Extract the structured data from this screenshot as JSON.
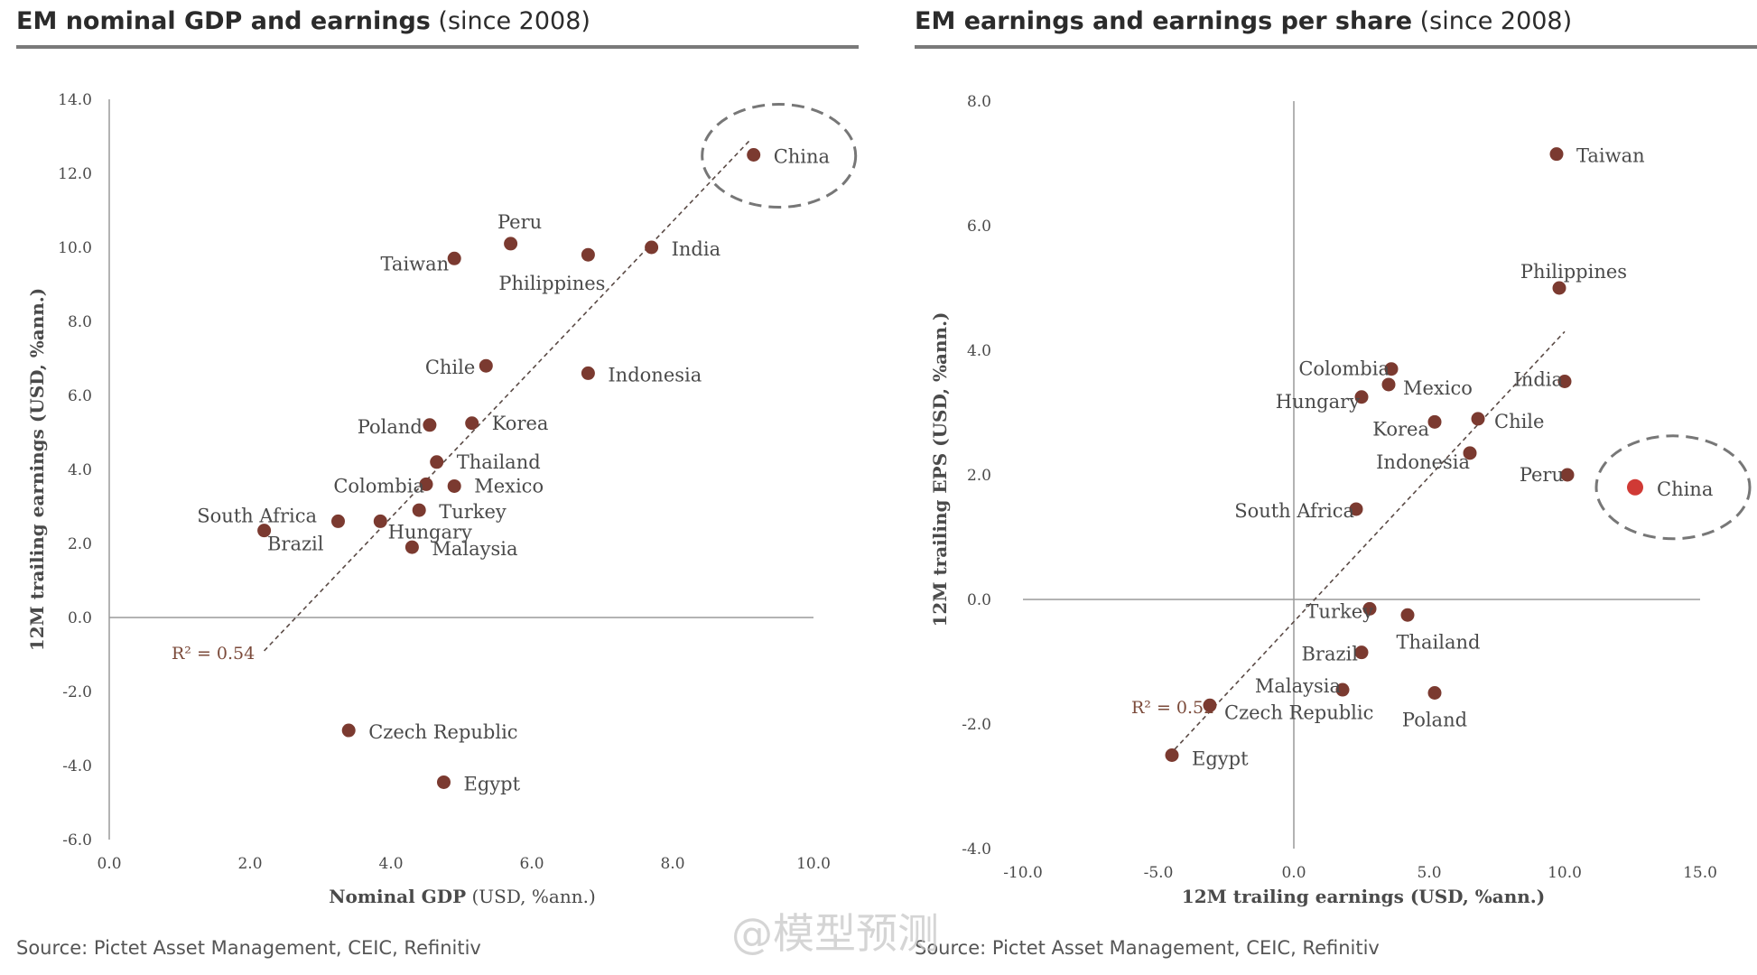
{
  "left_panel": {
    "title_bold": "EM nominal GDP and earnings",
    "title_rest": " (since 2008)",
    "source": "Source: Pictet Asset Management, CEIC, Refinitiv"
  },
  "right_panel": {
    "title_bold": "EM earnings and earnings per share",
    "title_rest": " (since 2008)",
    "source": "Source: Pictet Asset Management, CEIC, Refinitiv"
  },
  "watermark": "@模型预测",
  "colors": {
    "point": "#7b3a30",
    "highlight": "#d03a35",
    "axis": "#9a9a9a",
    "trend": "#5a4a45",
    "label": "#4a4a4a",
    "r2": "#7b4a3a",
    "circle": "#777777"
  },
  "chart_data": [
    {
      "type": "scatter",
      "xlabel_bold": "Nominal GDP",
      "xlabel_rest": " (USD, %ann.)",
      "ylabel": "12M trailing earnings (USD, %ann.)",
      "xlim": [
        0,
        10
      ],
      "ylim": [
        -6,
        14
      ],
      "x_ticks": [
        "0.0",
        "2.0",
        "4.0",
        "6.0",
        "8.0",
        "10.0"
      ],
      "y_ticks": [
        "14.0",
        "12.0",
        "10.0",
        "8.0",
        "6.0",
        "4.0",
        "2.0",
        "0.0",
        "-2.0",
        "-4.0",
        "-6.0"
      ],
      "r2_label": "R² = 0.54",
      "trendline": {
        "x": [
          2.2,
          9.1
        ],
        "y": [
          -0.9,
          12.9
        ]
      },
      "highlight": "China",
      "points": [
        {
          "name": "China",
          "x": 9.15,
          "y": 12.5
        },
        {
          "name": "India",
          "x": 7.7,
          "y": 10.0
        },
        {
          "name": "Peru",
          "x": 5.7,
          "y": 10.1
        },
        {
          "name": "Philippines",
          "x": 6.8,
          "y": 9.8
        },
        {
          "name": "Taiwan",
          "x": 4.9,
          "y": 9.7
        },
        {
          "name": "Chile",
          "x": 5.35,
          "y": 6.8
        },
        {
          "name": "Indonesia",
          "x": 6.8,
          "y": 6.6
        },
        {
          "name": "Poland",
          "x": 4.55,
          "y": 5.2
        },
        {
          "name": "Korea",
          "x": 5.15,
          "y": 5.25
        },
        {
          "name": "Thailand",
          "x": 4.65,
          "y": 4.2
        },
        {
          "name": "Colombia",
          "x": 4.5,
          "y": 3.6
        },
        {
          "name": "Mexico",
          "x": 4.9,
          "y": 3.55
        },
        {
          "name": "Turkey",
          "x": 4.4,
          "y": 2.9
        },
        {
          "name": "South Africa",
          "x": 2.2,
          "y": 2.35
        },
        {
          "name": "Brazil",
          "x": 3.25,
          "y": 2.6
        },
        {
          "name": "Hungary",
          "x": 3.85,
          "y": 2.6
        },
        {
          "name": "Malaysia",
          "x": 4.3,
          "y": 1.9
        },
        {
          "name": "Czech Republic",
          "x": 3.4,
          "y": -3.05
        },
        {
          "name": "Egypt",
          "x": 4.75,
          "y": -4.45
        }
      ]
    },
    {
      "type": "scatter",
      "xlabel": "12M trailing earnings (USD, %ann.)",
      "ylabel": "12M trailing EPS (USD, %ann.)",
      "xlim": [
        -10,
        15
      ],
      "ylim": [
        -4,
        8
      ],
      "x_ticks": [
        "-10.0",
        "-5.0",
        "0.0",
        "5.0",
        "10.0",
        "15.0"
      ],
      "y_ticks": [
        "8.0",
        "6.0",
        "4.0",
        "2.0",
        "0.0",
        "-2.0",
        "-4.0"
      ],
      "r2_label": "R² = 0.52",
      "trendline": {
        "x": [
          -4.6,
          10.0
        ],
        "y": [
          -2.5,
          4.3
        ]
      },
      "highlight": "China",
      "points": [
        {
          "name": "Taiwan",
          "x": 9.7,
          "y": 7.15
        },
        {
          "name": "Philippines",
          "x": 9.8,
          "y": 5.0
        },
        {
          "name": "India",
          "x": 10.0,
          "y": 3.5
        },
        {
          "name": "Colombia",
          "x": 3.6,
          "y": 3.7
        },
        {
          "name": "Mexico",
          "x": 3.5,
          "y": 3.45
        },
        {
          "name": "Hungary",
          "x": 2.5,
          "y": 3.25
        },
        {
          "name": "Korea",
          "x": 5.2,
          "y": 2.85
        },
        {
          "name": "Chile",
          "x": 6.8,
          "y": 2.9
        },
        {
          "name": "Indonesia",
          "x": 6.5,
          "y": 2.35
        },
        {
          "name": "Peru",
          "x": 10.1,
          "y": 2.0
        },
        {
          "name": "China",
          "x": 12.6,
          "y": 1.8
        },
        {
          "name": "South Africa",
          "x": 2.3,
          "y": 1.45
        },
        {
          "name": "Turkey",
          "x": 2.8,
          "y": -0.15
        },
        {
          "name": "Thailand",
          "x": 4.2,
          "y": -0.25
        },
        {
          "name": "Brazil",
          "x": 2.5,
          "y": -0.85
        },
        {
          "name": "Malaysia",
          "x": 1.8,
          "y": -1.45
        },
        {
          "name": "Poland",
          "x": 5.2,
          "y": -1.5
        },
        {
          "name": "Czech Republic",
          "x": -3.1,
          "y": -1.7
        },
        {
          "name": "Egypt",
          "x": -4.5,
          "y": -2.5
        }
      ]
    }
  ]
}
